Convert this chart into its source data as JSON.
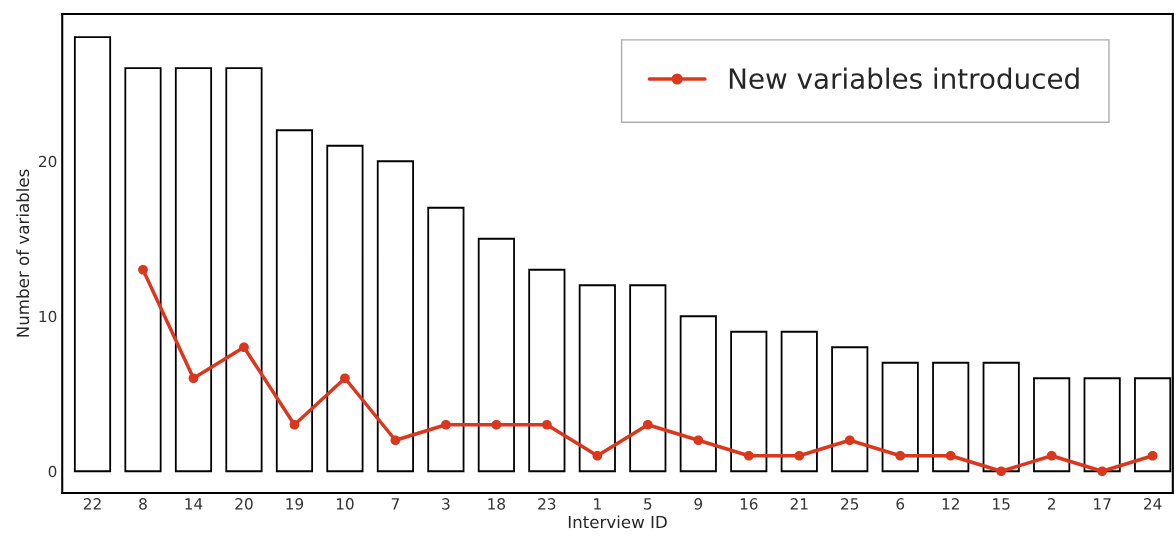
{
  "chart_data": {
    "type": "bar",
    "xlabel": "Interview ID",
    "ylabel": "Number of variables",
    "categories": [
      "22",
      "8",
      "14",
      "20",
      "19",
      "10",
      "7",
      "3",
      "18",
      "23",
      "1",
      "5",
      "9",
      "16",
      "21",
      "25",
      "6",
      "12",
      "15",
      "2",
      "17",
      "24"
    ],
    "ylim": [
      -1.4,
      29.5
    ],
    "yticks": [
      0,
      10,
      20
    ],
    "grid": false,
    "legend": "top right",
    "series": [
      {
        "color": "#ffffff",
        "values": [
          28,
          26,
          26,
          26,
          22,
          21,
          20,
          17,
          15,
          13,
          12,
          12,
          10,
          9,
          9,
          8,
          7,
          7,
          7,
          6,
          6,
          6
        ]
      },
      {
        "type": "line",
        "name": "New variables introduced",
        "color": "#d9381e",
        "marker": "circle",
        "line_style": "solid",
        "values": [
          null,
          13,
          6,
          8,
          3,
          6,
          2,
          3,
          3,
          3,
          1,
          3,
          2,
          1,
          1,
          2,
          1,
          1,
          0,
          1,
          0,
          1
        ]
      }
    ]
  }
}
